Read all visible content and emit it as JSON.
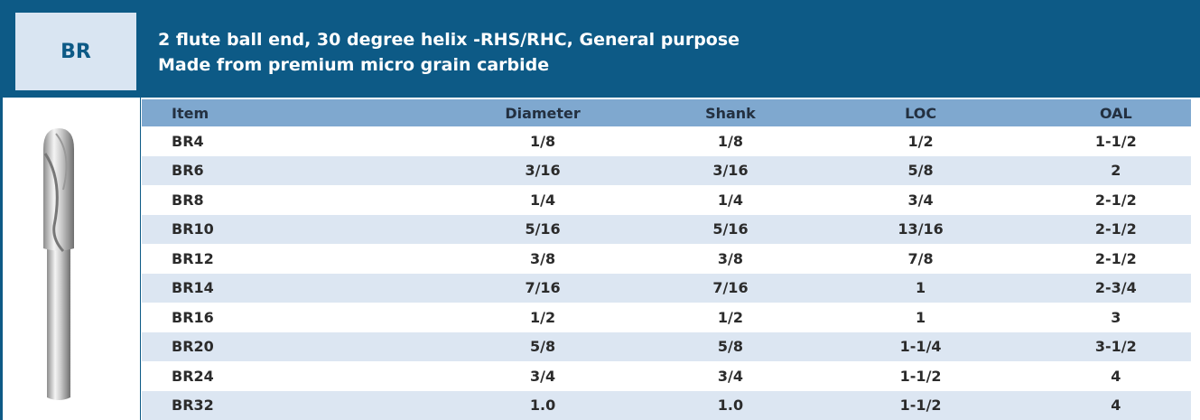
{
  "header": {
    "code": "BR",
    "lines": [
      "2 flute ball end, 30 degree helix -RHS/RHC, General purpose",
      "Made from premium micro grain carbide"
    ]
  },
  "table": {
    "columns": [
      "Item",
      "Diameter",
      "Shank",
      "LOC",
      "OAL"
    ],
    "rows": [
      [
        "BR4",
        "1/8",
        "1/8",
        "1/2",
        "1-1/2"
      ],
      [
        "BR6",
        "3/16",
        "3/16",
        "5/8",
        "2"
      ],
      [
        "BR8",
        "1/4",
        "1/4",
        "3/4",
        "2-1/2"
      ],
      [
        "BR10",
        "5/16",
        "5/16",
        "13/16",
        "2-1/2"
      ],
      [
        "BR12",
        "3/8",
        "3/8",
        "7/8",
        "2-1/2"
      ],
      [
        "BR14",
        "7/16",
        "7/16",
        "1",
        "2-3/4"
      ],
      [
        "BR16",
        "1/2",
        "1/2",
        "1",
        "3"
      ],
      [
        "BR20",
        "5/8",
        "5/8",
        "1-1/4",
        "3-1/2"
      ],
      [
        "BR24",
        "3/4",
        "3/4",
        "1-1/2",
        "4"
      ],
      [
        "BR32",
        "1.0",
        "1.0",
        "1-1/2",
        "4"
      ]
    ]
  }
}
